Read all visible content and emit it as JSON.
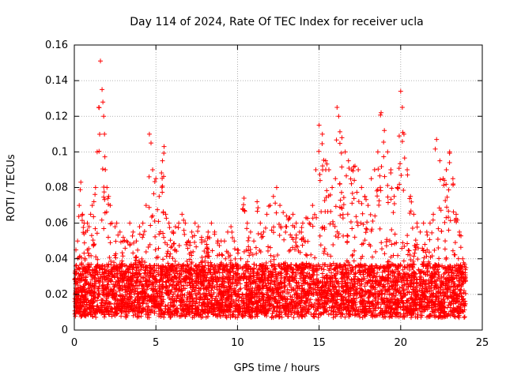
{
  "chart_data": {
    "type": "scatter",
    "title": "Day 114 of 2024, Rate Of TEC Index for receiver ucla",
    "xlabel": "GPS time / hours",
    "ylabel": "ROTI / TECUs",
    "xlim": [
      0,
      25
    ],
    "ylim": [
      0,
      0.16
    ],
    "xticks": [
      "0",
      "5",
      "10",
      "15",
      "20",
      "25"
    ],
    "yticks": [
      "0",
      "0.02",
      "0.04",
      "0.06",
      "0.08",
      "0.1",
      "0.12",
      "0.14",
      "0.16"
    ],
    "grid": true,
    "marker": "+",
    "color": "#ff0000",
    "series": [
      {
        "x": [
          0.1,
          0.2,
          0.3,
          0.4,
          0.5,
          0.6,
          0.7,
          0.8,
          0.9,
          1.0,
          1.1,
          1.2,
          1.3,
          1.4,
          1.5,
          1.6,
          1.7,
          1.75,
          1.8,
          1.85,
          1.9,
          2.0,
          2.1,
          2.2,
          2.3,
          2.5,
          2.6,
          2.8,
          3.0,
          3.2,
          3.4,
          3.6,
          3.8,
          4.0,
          4.2,
          4.4,
          4.6,
          4.7,
          4.8,
          5.0,
          5.2,
          5.4,
          5.5,
          5.6,
          5.8,
          6.0,
          6.2,
          6.4,
          6.6,
          6.8,
          7.0,
          7.2,
          7.4,
          7.6,
          7.8,
          8.0,
          8.2,
          8.4,
          8.6,
          8.8,
          9.0,
          9.2,
          9.4,
          9.6,
          9.8,
          10.0,
          10.2,
          10.4,
          10.6,
          10.8,
          11.0,
          11.2,
          11.4,
          11.6,
          11.8,
          12.0,
          12.2,
          12.4,
          12.6,
          12.8,
          13.0,
          13.2,
          13.4,
          13.6,
          13.8,
          14.0,
          14.2,
          14.4,
          14.6,
          14.8,
          15.0,
          15.2,
          15.4,
          15.6,
          15.8,
          16.0,
          16.1,
          16.2,
          16.4,
          16.6,
          16.8,
          17.0,
          17.2,
          17.4,
          17.6,
          17.8,
          18.0,
          18.2,
          18.4,
          18.6,
          18.8,
          19.0,
          19.2,
          19.4,
          19.6,
          19.8,
          20.0,
          20.1,
          20.2,
          20.4,
          20.6,
          20.8,
          21.0,
          21.2,
          21.4,
          21.6,
          21.8,
          22.0,
          22.2,
          22.4,
          22.6,
          22.8,
          23.0,
          23.2,
          23.4,
          23.6,
          23.8,
          24.0
        ],
        "y": [
          0.045,
          0.05,
          0.07,
          0.083,
          0.065,
          0.06,
          0.055,
          0.06,
          0.058,
          0.065,
          0.07,
          0.072,
          0.08,
          0.1,
          0.125,
          0.151,
          0.135,
          0.128,
          0.12,
          0.11,
          0.09,
          0.08,
          0.075,
          0.07,
          0.06,
          0.058,
          0.06,
          0.055,
          0.052,
          0.05,
          0.06,
          0.055,
          0.05,
          0.058,
          0.06,
          0.07,
          0.11,
          0.105,
          0.09,
          0.085,
          0.075,
          0.095,
          0.103,
          0.065,
          0.06,
          0.055,
          0.058,
          0.06,
          0.065,
          0.06,
          0.05,
          0.055,
          0.06,
          0.058,
          0.052,
          0.05,
          0.055,
          0.06,
          0.055,
          0.05,
          0.05,
          0.05,
          0.055,
          0.058,
          0.05,
          0.045,
          0.04,
          0.074,
          0.06,
          0.055,
          0.05,
          0.072,
          0.06,
          0.055,
          0.065,
          0.07,
          0.075,
          0.08,
          0.07,
          0.066,
          0.064,
          0.063,
          0.065,
          0.06,
          0.055,
          0.06,
          0.063,
          0.06,
          0.07,
          0.09,
          0.115,
          0.11,
          0.095,
          0.09,
          0.08,
          0.085,
          0.125,
          0.12,
          0.108,
          0.1,
          0.095,
          0.09,
          0.092,
          0.09,
          0.08,
          0.075,
          0.07,
          0.085,
          0.09,
          0.1,
          0.122,
          0.112,
          0.1,
          0.09,
          0.075,
          0.08,
          0.134,
          0.125,
          0.11,
          0.09,
          0.075,
          0.065,
          0.06,
          0.055,
          0.06,
          0.055,
          0.06,
          0.065,
          0.107,
          0.095,
          0.085,
          0.09,
          0.1,
          0.085,
          0.065,
          0.055,
          0.04,
          0.035
        ]
      }
    ]
  }
}
